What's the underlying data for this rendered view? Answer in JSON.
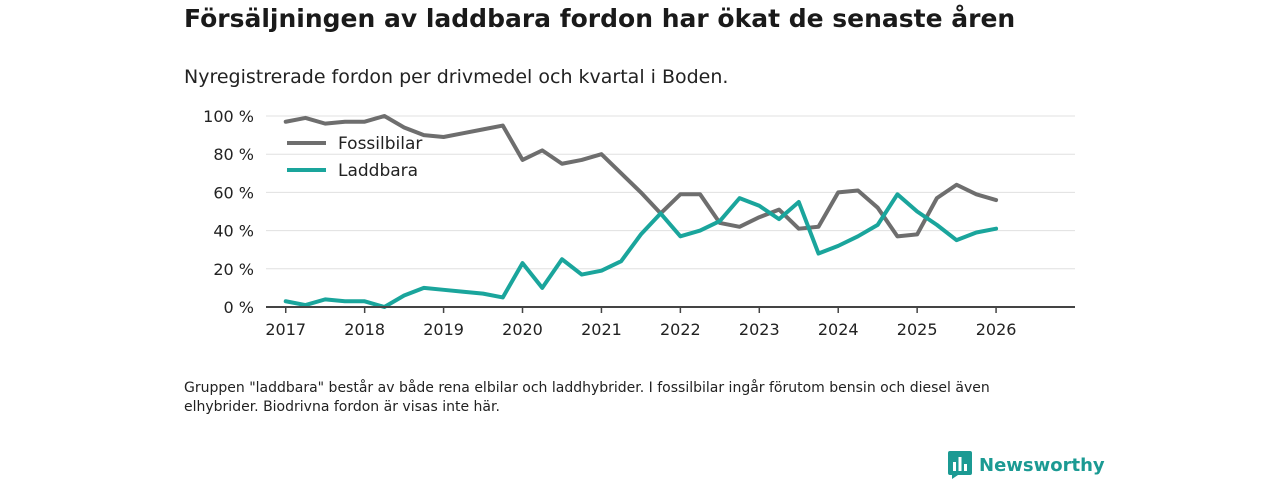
{
  "title": "Försäljningen av laddbara fordon har ökat de senaste åren",
  "subtitle": "Nyregistrerade fordon per drivmedel och kvartal i Boden.",
  "note": "Gruppen \"laddbara\" består av både rena elbilar och laddhybrider. I fossilbilar ingår förutom bensin och diesel även elhybrider. Biodrivna fordon är visas inte här.",
  "brand": {
    "name": "Newsworthy"
  },
  "colors": {
    "fossil": "#6e6e6e",
    "laddbara": "#1aa59c",
    "grid": "#e0e0e0",
    "axis": "#444444",
    "brand": "#1b9a93"
  },
  "chart_data": {
    "type": "line",
    "title": "Nyregistrerade fordon per drivmedel och kvartal i Boden.",
    "xlabel": "",
    "ylabel": "",
    "xlim": [
      2016.75,
      2027.0
    ],
    "ylim": [
      0,
      100
    ],
    "grid": true,
    "legend": "top-left",
    "xticks": [
      2017,
      2018,
      2019,
      2020,
      2021,
      2022,
      2023,
      2024,
      2025,
      2026
    ],
    "xtick_labels": [
      "2017",
      "2018",
      "2019",
      "2020",
      "2021",
      "2022",
      "2023",
      "2024",
      "2025",
      "2026"
    ],
    "yticks": [
      0,
      20,
      40,
      60,
      80,
      100
    ],
    "ytick_labels": [
      "0 %",
      "20 %",
      "40 %",
      "60 %",
      "80 %",
      "100 %"
    ],
    "x": [
      2017.0,
      2017.25,
      2017.5,
      2017.75,
      2018.0,
      2018.25,
      2018.5,
      2018.75,
      2019.0,
      2019.25,
      2019.5,
      2019.75,
      2020.0,
      2020.25,
      2020.5,
      2020.75,
      2021.0,
      2021.25,
      2021.5,
      2021.75,
      2022.0,
      2022.25,
      2022.5,
      2022.75,
      2023.0,
      2023.25,
      2023.5,
      2023.75,
      2024.0,
      2024.25,
      2024.5,
      2024.75,
      2025.0,
      2025.25,
      2025.5,
      2025.75,
      2026.0
    ],
    "series": [
      {
        "name": "Fossilbilar",
        "key": "fossil",
        "values": [
          97,
          99,
          96,
          97,
          97,
          100,
          94,
          90,
          89,
          91,
          93,
          95,
          77,
          82,
          75,
          77,
          80,
          70,
          60,
          49,
          59,
          59,
          44,
          42,
          47,
          51,
          41,
          42,
          60,
          61,
          52,
          37,
          38,
          57,
          64,
          59,
          56
        ]
      },
      {
        "name": "Laddbara",
        "key": "laddbara",
        "values": [
          3,
          1,
          4,
          3,
          3,
          0,
          6,
          10,
          9,
          8,
          7,
          5,
          23,
          10,
          25,
          17,
          19,
          24,
          38,
          49,
          37,
          40,
          45,
          57,
          53,
          46,
          55,
          28,
          32,
          37,
          43,
          59,
          50,
          43,
          35,
          39,
          41
        ]
      }
    ]
  }
}
